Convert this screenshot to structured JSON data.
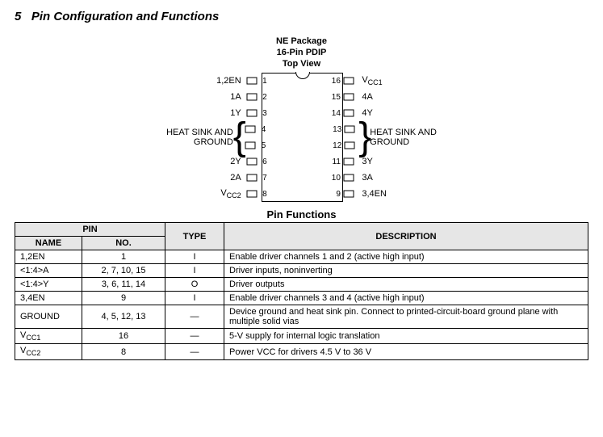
{
  "section": {
    "number": "5",
    "title": "Pin Configuration and Functions"
  },
  "package": {
    "line1": "NE Package",
    "line2": "16-Pin PDIP",
    "line3": "Top View"
  },
  "heatsink_label": {
    "line1": "HEAT SINK AND",
    "line2": "GROUND"
  },
  "chip": {
    "left_labels": [
      "1,2EN",
      "1A",
      "1Y",
      "",
      "",
      "2Y",
      "2A",
      "V"
    ],
    "left_sub": [
      "",
      "",
      "",
      "",
      "",
      "",
      "",
      "CC2"
    ],
    "left_nums": [
      "1",
      "2",
      "3",
      "4",
      "5",
      "6",
      "7",
      "8"
    ],
    "right_nums": [
      "16",
      "15",
      "14",
      "13",
      "12",
      "11",
      "10",
      "9"
    ],
    "right_labels": [
      "V",
      "4A",
      "4Y",
      "",
      "",
      "3Y",
      "3A",
      "3,4EN"
    ],
    "right_sub": [
      "CC1",
      "",
      "",
      "",
      "",
      "",
      "",
      ""
    ]
  },
  "pin_functions": {
    "title": "Pin Functions",
    "headers": {
      "pin": "PIN",
      "name": "NAME",
      "no": "NO.",
      "type": "TYPE",
      "desc": "DESCRIPTION"
    },
    "rows": [
      {
        "name": "1,2EN",
        "no": "1",
        "type": "I",
        "desc": "Enable driver channels 1 and 2 (active high input)"
      },
      {
        "name": "<1:4>A",
        "no": "2, 7, 10, 15",
        "type": "I",
        "desc": "Driver inputs, noninverting"
      },
      {
        "name": "<1:4>Y",
        "no": "3, 6, 11, 14",
        "type": "O",
        "desc": "Driver outputs"
      },
      {
        "name": "3,4EN",
        "no": "9",
        "type": "I",
        "desc": "Enable driver channels 3 and 4 (active high input)"
      },
      {
        "name": "GROUND",
        "no": "4, 5, 12, 13",
        "type": "—",
        "desc": "Device ground and heat sink pin. Connect to printed-circuit-board ground plane with multiple solid vias"
      },
      {
        "name": "V",
        "name_sub": "CC1",
        "no": "16",
        "type": "—",
        "desc": "5-V supply for internal logic translation"
      },
      {
        "name": "V",
        "name_sub": "CC2",
        "no": "8",
        "type": "—",
        "desc": "Power VCC for drivers 4.5 V to 36 V"
      }
    ]
  }
}
